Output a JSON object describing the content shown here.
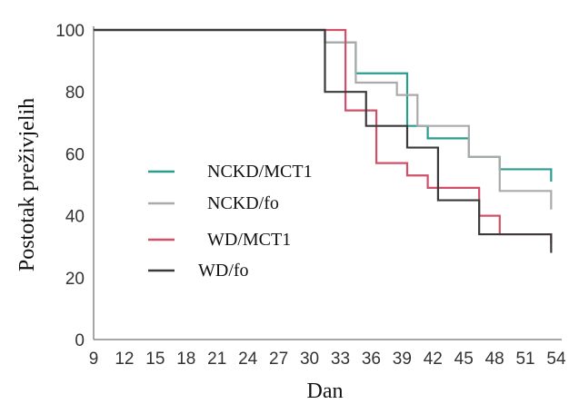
{
  "chart_data": {
    "type": "line",
    "step": true,
    "xlabel": "Dan",
    "ylabel": "Postotak preživjelih",
    "xlim": [
      9,
      54
    ],
    "ylim": [
      0,
      100
    ],
    "xticks": [
      9,
      12,
      15,
      18,
      21,
      24,
      27,
      30,
      33,
      36,
      39,
      42,
      45,
      48,
      51,
      54
    ],
    "yticks": [
      0,
      20,
      40,
      60,
      80,
      100
    ],
    "grid": false,
    "legend_position": "left-center",
    "series": [
      {
        "name": "NCKD/MCT1",
        "color": "#2a9d8f",
        "x": [
          9,
          27.5,
          31.5,
          34.5,
          39.5,
          41.5,
          45.5,
          48.5,
          53.5
        ],
        "y": [
          100,
          100,
          96,
          86,
          69,
          65,
          59,
          55,
          51
        ]
      },
      {
        "name": "NCKD/fo",
        "color": "#aaaaaa",
        "x": [
          9,
          27.5,
          31.5,
          34.5,
          38.5,
          40.5,
          45.5,
          48.5,
          53.5
        ],
        "y": [
          100,
          100,
          96,
          83,
          79,
          69,
          59,
          48,
          42
        ]
      },
      {
        "name": "WD/MCT1",
        "color": "#d0506a",
        "x": [
          9,
          31.5,
          33.5,
          36.5,
          39.5,
          41.5,
          46.5,
          48.5,
          53.5
        ],
        "y": [
          100,
          100,
          74,
          57,
          53,
          49,
          40,
          34,
          31
        ]
      },
      {
        "name": "WD/fo",
        "color": "#3a3a3a",
        "x": [
          9,
          27.5,
          31.5,
          35.5,
          39.5,
          42.5,
          46.5,
          51.5,
          53.5
        ],
        "y": [
          100,
          100,
          80,
          69,
          62,
          45,
          34,
          34,
          28
        ]
      }
    ]
  }
}
